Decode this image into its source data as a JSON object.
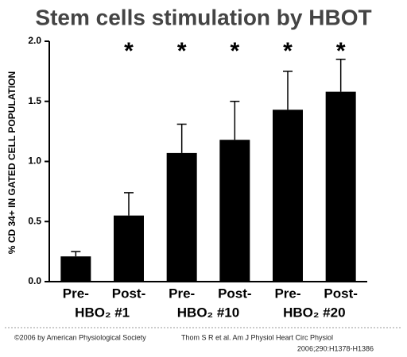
{
  "chart_data": {
    "type": "bar",
    "title": "Stem cells stimulation by HBOT",
    "y_label": "% CD 34+ IN GATED CELL POPULATION",
    "categories": [
      "Pre-",
      "Post-",
      "Pre-",
      "Post-",
      "Pre-",
      "Post-"
    ],
    "groups": [
      "HBO₂ #1",
      "HBO₂ #10",
      "HBO₂ #20"
    ],
    "values": [
      0.21,
      0.55,
      1.07,
      1.18,
      1.43,
      1.58
    ],
    "errors": [
      0.04,
      0.19,
      0.24,
      0.32,
      0.32,
      0.27
    ],
    "significance": [
      null,
      "*",
      "*",
      "*",
      "*",
      "*"
    ],
    "color": "#000000",
    "ylim": [
      0,
      2
    ],
    "yticks": [
      {
        "value": 0,
        "label": "0.0"
      },
      0.5,
      {
        "value": 1,
        "label": "1.0"
      },
      1.5,
      {
        "value": 2,
        "label": "2.0"
      }
    ],
    "footer_left": "©2006 by American Physiological Society",
    "footer_right": [
      "Thom S R et al. Am J Physiol  Heart Circ Physiol",
      "2006;290:H1378-H1386"
    ]
  }
}
